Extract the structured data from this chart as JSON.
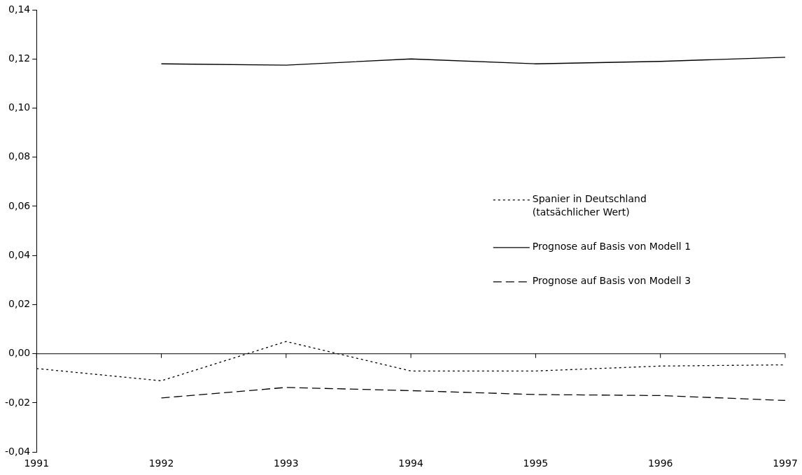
{
  "chart_data": {
    "type": "line",
    "x": [
      1991,
      1992,
      1993,
      1994,
      1995,
      1996,
      1997
    ],
    "xlim": [
      1991,
      1997
    ],
    "xticks": [
      1991,
      1992,
      1993,
      1994,
      1995,
      1996,
      1997
    ],
    "ylim": [
      -0.04,
      0.14
    ],
    "yticks": [
      {
        "value": -0.04,
        "label": "-0,04"
      },
      {
        "value": -0.02,
        "label": "-0,02"
      },
      {
        "value": 0,
        "label": "0,00"
      },
      {
        "value": 0.02,
        "label": "0,02"
      },
      {
        "value": 0.04,
        "label": "0,04"
      },
      {
        "value": 0.06,
        "label": "0,06"
      },
      {
        "value": 0.08,
        "label": "0,08"
      },
      {
        "value": 0.1,
        "label": "0,10"
      },
      {
        "value": 0.12,
        "label": "0,12"
      },
      {
        "value": 0.14,
        "label": "0,14"
      }
    ],
    "series": [
      {
        "name": "Spanier in Deutschland\n(tatsächlicher Wert)",
        "color": "#000000",
        "line_style": "dotted",
        "values": [
          -0.006,
          -0.011,
          0.005,
          -0.007,
          -0.007,
          -0.005,
          -0.0045
        ]
      },
      {
        "name": "Prognose auf Basis von Modell 1",
        "color": "#000000",
        "line_style": "solid",
        "values": [
          null,
          0.118,
          0.1175,
          0.12,
          0.118,
          0.119,
          0.1207
        ]
      },
      {
        "name": "Prognose auf Basis von Modell 3",
        "color": "#000000",
        "line_style": "dashed",
        "values": [
          null,
          -0.018,
          -0.0137,
          -0.015,
          -0.0166,
          -0.017,
          -0.019
        ]
      }
    ],
    "ref_lines": [
      {
        "axis": "y",
        "value": 0,
        "color": "#000000"
      }
    ],
    "grid": false,
    "legend": "right",
    "marker": "none"
  }
}
